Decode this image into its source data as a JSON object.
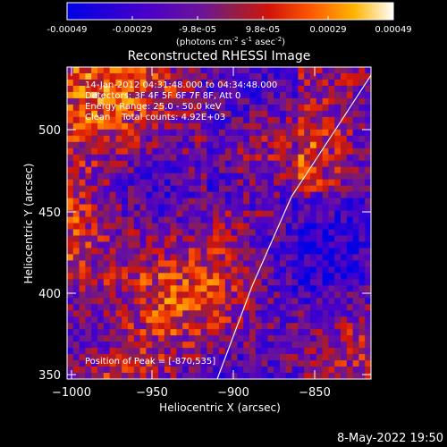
{
  "colorbar": {
    "tick_labels": [
      "-0.00049",
      "-0.00029",
      "-9.8e-05",
      "9.8e-05",
      "0.00029",
      "0.00049"
    ],
    "unit_label": "(photons cm",
    "unit_exp1": "-2",
    "unit_mid": " s",
    "unit_exp2": "-1",
    "unit_tail": " asec",
    "unit_exp3": "-2",
    "unit_close": ")",
    "min": -0.00049,
    "max": 0.00049
  },
  "plot": {
    "title": "Reconstructed RHESSI Image",
    "xlabel": "Heliocentric X (arcsec)",
    "ylabel": "Heliocentric Y (arcsec)",
    "x_ticks": [
      "−1000",
      "−950",
      "−900",
      "−850"
    ],
    "y_ticks": [
      "500",
      "450",
      "400",
      "350"
    ],
    "x_range": [
      -1005,
      -815
    ],
    "y_range": [
      348,
      532
    ],
    "info_lines": [
      "14-Jan-2012 04:31:48.000 to 04:34:48.000",
      "Detectors: 3F 4F 5F 6F 7F 8F, Att 0",
      "Energy Range: 25.0 - 50.0 keV",
      "Clean    Total counts: 4.92E+03"
    ],
    "peak_label": "Position of Peak = [-870,535]"
  },
  "footer": {
    "timestamp": "8-May-2022 19:50"
  },
  "colors": {
    "background": "#000000",
    "text": "#ffffff",
    "limb": "#ffffff"
  }
}
